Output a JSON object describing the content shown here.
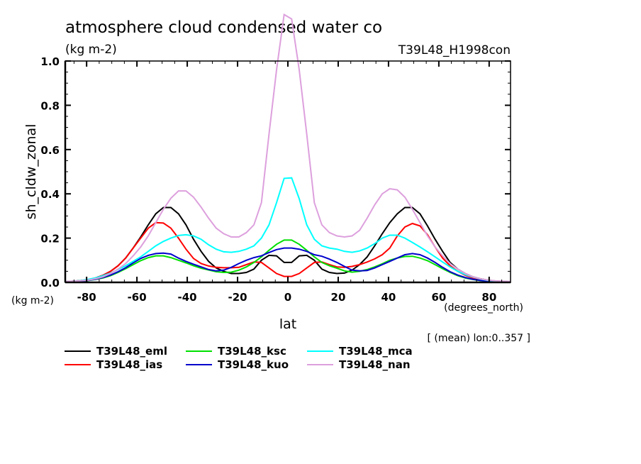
{
  "chart_data": {
    "type": "line",
    "title": "atmosphere cloud condensed water co",
    "title_units": "(kg m-2)",
    "experiment_label": "T39L48_H1998con",
    "ylabel": "sh_cldw_zonal",
    "ylabel_units": "(kg m-2)",
    "xlabel": "lat",
    "xlabel_units": "(degrees_north)",
    "subset_note": "[ (mean) lon:0..357 ]",
    "xlim": [
      -88.5,
      88.5
    ],
    "ylim": [
      0,
      1.0
    ],
    "xticks": [
      -80,
      -60,
      -40,
      -20,
      0,
      20,
      40,
      60,
      80
    ],
    "xtick_labels": [
      "-80",
      "-60",
      "-40",
      "-20",
      "0",
      "20",
      "40",
      "60",
      "80"
    ],
    "yticks": [
      0.0,
      0.2,
      0.4,
      0.6,
      0.8,
      1.0
    ],
    "ytick_labels": [
      "0.0",
      "0.2",
      "0.4",
      "0.6",
      "0.8",
      "1.0"
    ],
    "grid": false,
    "legend_position": "bottom",
    "x": [
      -88.5,
      -85.5,
      -82.5,
      -79.5,
      -76.5,
      -73.5,
      -70.5,
      -67.5,
      -64.5,
      -61.5,
      -58.5,
      -55.5,
      -52.5,
      -49.5,
      -46.5,
      -43.5,
      -40.5,
      -37.5,
      -34.5,
      -31.5,
      -28.5,
      -25.5,
      -22.5,
      -19.5,
      -16.5,
      -13.5,
      -10.5,
      -7.5,
      -4.5,
      -1.5,
      1.5,
      4.5,
      7.5,
      10.5,
      13.5,
      16.5,
      19.5,
      22.5,
      25.5,
      28.5,
      31.5,
      34.5,
      37.5,
      40.5,
      43.5,
      46.5,
      49.5,
      52.5,
      55.5,
      58.5,
      61.5,
      64.5,
      67.5,
      70.5,
      73.5,
      76.5,
      79.5,
      82.5,
      85.5,
      88.5
    ],
    "series": [
      {
        "name": "T39L48_eml",
        "color": "#000000",
        "values": [
          0.003,
          0.005,
          0.008,
          0.012,
          0.02,
          0.032,
          0.05,
          0.075,
          0.11,
          0.155,
          0.205,
          0.26,
          0.31,
          0.338,
          0.338,
          0.31,
          0.26,
          0.195,
          0.14,
          0.095,
          0.065,
          0.05,
          0.04,
          0.04,
          0.045,
          0.06,
          0.1,
          0.122,
          0.12,
          0.09,
          0.09,
          0.12,
          0.122,
          0.1,
          0.06,
          0.045,
          0.04,
          0.042,
          0.055,
          0.08,
          0.115,
          0.165,
          0.22,
          0.27,
          0.31,
          0.338,
          0.338,
          0.31,
          0.255,
          0.195,
          0.14,
          0.09,
          0.06,
          0.04,
          0.025,
          0.016,
          0.01,
          0.006,
          0.004,
          0.003
        ]
      },
      {
        "name": "T39L48_ias",
        "color": "#ff0000",
        "values": [
          0.003,
          0.005,
          0.008,
          0.012,
          0.02,
          0.032,
          0.05,
          0.075,
          0.11,
          0.155,
          0.2,
          0.245,
          0.27,
          0.268,
          0.245,
          0.2,
          0.15,
          0.108,
          0.085,
          0.074,
          0.068,
          0.066,
          0.066,
          0.068,
          0.08,
          0.092,
          0.09,
          0.065,
          0.04,
          0.027,
          0.027,
          0.04,
          0.065,
          0.09,
          0.092,
          0.08,
          0.07,
          0.068,
          0.072,
          0.08,
          0.092,
          0.106,
          0.125,
          0.155,
          0.21,
          0.25,
          0.266,
          0.255,
          0.215,
          0.16,
          0.11,
          0.075,
          0.05,
          0.032,
          0.02,
          0.012,
          0.008,
          0.005,
          0.004,
          0.003
        ]
      },
      {
        "name": "T39L48_ksc",
        "color": "#00e000",
        "values": [
          0.002,
          0.003,
          0.005,
          0.008,
          0.013,
          0.02,
          0.03,
          0.045,
          0.062,
          0.08,
          0.098,
          0.112,
          0.12,
          0.12,
          0.112,
          0.1,
          0.088,
          0.075,
          0.064,
          0.056,
          0.048,
          0.045,
          0.046,
          0.055,
          0.07,
          0.09,
          0.115,
          0.145,
          0.172,
          0.191,
          0.191,
          0.172,
          0.145,
          0.115,
          0.09,
          0.075,
          0.064,
          0.052,
          0.046,
          0.05,
          0.058,
          0.07,
          0.084,
          0.1,
          0.11,
          0.117,
          0.118,
          0.11,
          0.098,
          0.08,
          0.062,
          0.045,
          0.03,
          0.02,
          0.013,
          0.008,
          0.005,
          0.003,
          0.002,
          0.002
        ]
      },
      {
        "name": "T39L48_kuo",
        "color": "#0000cc",
        "values": [
          0.002,
          0.003,
          0.005,
          0.009,
          0.014,
          0.022,
          0.033,
          0.048,
          0.066,
          0.088,
          0.108,
          0.122,
          0.13,
          0.132,
          0.128,
          0.11,
          0.095,
          0.082,
          0.07,
          0.058,
          0.052,
          0.055,
          0.068,
          0.085,
          0.1,
          0.112,
          0.12,
          0.135,
          0.148,
          0.155,
          0.155,
          0.15,
          0.14,
          0.125,
          0.118,
          0.105,
          0.09,
          0.072,
          0.055,
          0.052,
          0.054,
          0.065,
          0.08,
          0.095,
          0.11,
          0.125,
          0.13,
          0.125,
          0.11,
          0.09,
          0.068,
          0.048,
          0.033,
          0.022,
          0.014,
          0.009,
          0.005,
          0.003,
          0.002,
          0.002
        ]
      },
      {
        "name": "T39L48_mca",
        "color": "#00ffff",
        "values": [
          0.003,
          0.005,
          0.008,
          0.013,
          0.02,
          0.03,
          0.042,
          0.058,
          0.075,
          0.095,
          0.115,
          0.14,
          0.165,
          0.185,
          0.2,
          0.212,
          0.215,
          0.21,
          0.195,
          0.17,
          0.15,
          0.138,
          0.136,
          0.14,
          0.15,
          0.165,
          0.2,
          0.26,
          0.36,
          0.47,
          0.472,
          0.378,
          0.26,
          0.195,
          0.165,
          0.155,
          0.15,
          0.14,
          0.136,
          0.142,
          0.155,
          0.175,
          0.2,
          0.213,
          0.213,
          0.2,
          0.18,
          0.16,
          0.138,
          0.115,
          0.092,
          0.07,
          0.05,
          0.035,
          0.024,
          0.015,
          0.009,
          0.006,
          0.004,
          0.003
        ]
      },
      {
        "name": "T39L48_nan",
        "color": "#dda0dd",
        "values": [
          0.004,
          0.005,
          0.007,
          0.01,
          0.016,
          0.025,
          0.04,
          0.06,
          0.085,
          0.12,
          0.16,
          0.21,
          0.27,
          0.33,
          0.38,
          0.413,
          0.413,
          0.385,
          0.34,
          0.29,
          0.245,
          0.22,
          0.205,
          0.205,
          0.225,
          0.26,
          0.36,
          0.67,
          0.96,
          1.21,
          1.19,
          0.96,
          0.67,
          0.36,
          0.26,
          0.225,
          0.21,
          0.205,
          0.21,
          0.235,
          0.29,
          0.35,
          0.4,
          0.423,
          0.418,
          0.385,
          0.33,
          0.27,
          0.21,
          0.16,
          0.12,
          0.085,
          0.06,
          0.04,
          0.025,
          0.016,
          0.01,
          0.007,
          0.005,
          0.004
        ]
      }
    ]
  }
}
